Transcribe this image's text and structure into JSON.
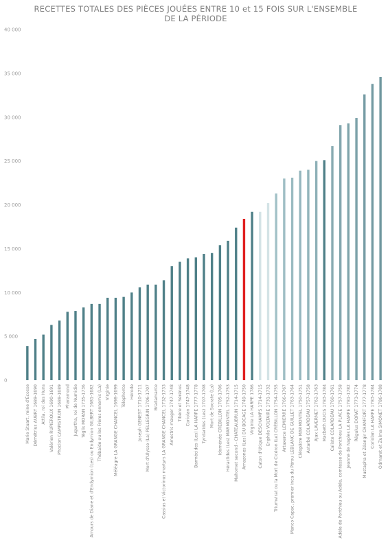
{
  "chart_data": {
    "type": "bar",
    "title": "RECETTES TOTALES DES PIÈCES JOUÉES ENTRE 10 et 15 FOIS SUR L'ENSEMBLE DE LA PÉRIODE",
    "xlabel": "",
    "ylabel": "",
    "ylim": [
      0,
      40000
    ],
    "yticks": [
      "0",
      "5 000",
      "10 000",
      "15 000",
      "20 000",
      "25 000",
      "30 000",
      "35 000",
      "40 000"
    ],
    "grid": false,
    "colors": {
      "default": "#4f8088",
      "highlight": "#e02020",
      "light": "#d3e3e6",
      "fade_start": "#a2c1c7",
      "fade_end": "#6f979f"
    },
    "categories": [
      "Marie Stuart, reine d'Écosse",
      "Démétrius AUBRY 1689-1690",
      "Attila, roi des Huns",
      "Valérien RUPIEROUX 1690-1691",
      "Phocion CAMPISTRON 1688-1689",
      "Pharamond",
      "Jugurtha, roi de Numidie",
      "Téglis MORAN 1735-1736",
      "Amours de Diane et d'Endymion (Les) ou Endymion GILBERT 1681-1682",
      "Thébaïde ou les Frères ennemis (La)",
      "Virginie",
      "Méléagre LA GRANGE CHANCEL 1698-1699",
      "Télephonte",
      "Hérode",
      "Joseph GENEST 1710-1711",
      "Mort d'Ulysse (La) PELLEGRIN 1706-1707",
      "Bradamante",
      "Cassius et Victorinus martyrs LA GRANGE CHANCEL 1732-1733",
      "Amestris mauger 1747-1748",
      "Tibère et Sérénus",
      "Coriolan 1747-1748",
      "Barmécides (Les) LA HARPE 1777-1778",
      "Tyndarides (Les) 1707-1708",
      "Mort de Socrate (La)",
      "Idoménée CRÉBILLON 1705-1706",
      "Héraclides (Les) MARMONTEL 1752-1753",
      "Mahomet second - CHATEAUBRUN 1714-1715",
      "Amazones (Les) DU BOCAGE 1749-1750",
      "Virginie LA HARPE 1786",
      "Caton d'Utique DESCHAMPS 1714-1715",
      "Eriphile VOLTAIRE 1731-1732",
      "Triumvirat ou la Mort de Cicéron (Le) CRÉBILLON 1754-1755",
      "Artaxerce LEMIERRE 1766-1767",
      "Manco Capac, premier Inca du Pérou LEBLANC DE GUILLET 1763-1764",
      "Cléopâtre MARMONTEL 1750-1751",
      "Astarbé COLARDEAU 1757-1758",
      "Ajax LAVERNET 1762-1763",
      "Macbeth DUCIS 1783-1784",
      "Caliste COLARDEAU 1760-1761",
      "Adèle de Ponthieu ou Adèle, comtesse de Ponthieu LA PLACE 1757-1758",
      "Jeanne de Naples LA HARPE 1781-1782",
      "Régulus DORAT 1773-1774",
      "Mustapha et Zéangir CHAMFORT 1777-1778",
      "Coriolan LA HARPE 1783-1784",
      "Odmaret et Zulma SIMONET 1786-1788"
    ],
    "values": [
      3900,
      4700,
      5200,
      6300,
      6800,
      7800,
      7900,
      8300,
      8700,
      8700,
      9400,
      9400,
      9500,
      10000,
      10600,
      10900,
      10900,
      11400,
      13000,
      13500,
      13900,
      14000,
      14400,
      14500,
      15400,
      15900,
      17400,
      18400,
      19200,
      19200,
      20200,
      21300,
      23000,
      23100,
      23900,
      24000,
      25000,
      25100,
      26700,
      29100,
      29300,
      29900,
      32600,
      33800,
      34600
    ],
    "highlight_index": 27
  }
}
